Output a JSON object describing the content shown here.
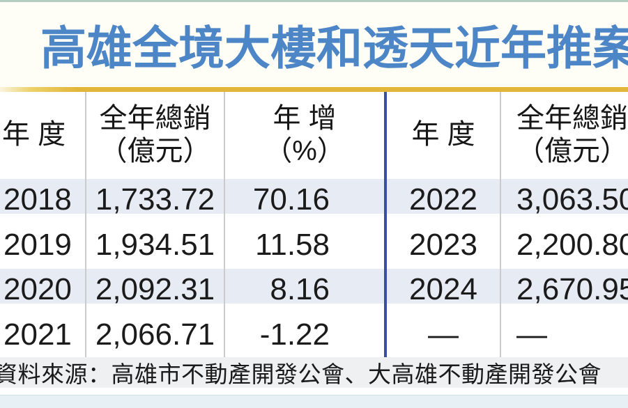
{
  "title": "高雄全境大樓和透天近年推案",
  "source": "資料來源：高雄市不動產開發公會、大高雄不動產開發公會",
  "colors": {
    "title_blue": "#4d86c6",
    "title_bg": "#fefdf6",
    "gold_rule": "#e2b63a",
    "row_tint": "#e7ebf3",
    "divider_gray": "#cbcbcb",
    "divider_blue": "#3b509b",
    "source_bar_bg": "#eff0f2",
    "bottom_stripe": "#e7f1f5",
    "top_edge": "#b3cdc2"
  },
  "table": {
    "left": {
      "year_header": "年 度",
      "total_header": [
        "全年總銷",
        "（億元）"
      ],
      "yoy_header": [
        "年 增",
        "（%）"
      ],
      "rows": [
        {
          "year": "2018",
          "total": "1,733.72",
          "yoy": "70.16"
        },
        {
          "year": "2019",
          "total": "1,934.51",
          "yoy": "11.58"
        },
        {
          "year": "2020",
          "total": "2,092.31",
          "yoy": "8.16"
        },
        {
          "year": "2021",
          "total": "2,066.71",
          "yoy": "-1.22"
        }
      ]
    },
    "right": {
      "year_header": "年 度",
      "total_header": [
        "全年總銷",
        "（億元）"
      ],
      "rows": [
        {
          "year": "2022",
          "total": "3,063.50"
        },
        {
          "year": "2023",
          "total": "2,200.80"
        },
        {
          "year": "2024",
          "total": "2,670.95"
        },
        {
          "year": "—",
          "total": "—"
        }
      ]
    }
  },
  "chart_data": {
    "type": "table",
    "title": "高雄全境大樓和透天近年推案",
    "columns": [
      "年度",
      "全年總銷（億元）",
      "年增（%）"
    ],
    "rows": [
      [
        2018,
        1733.72,
        70.16
      ],
      [
        2019,
        1934.51,
        11.58
      ],
      [
        2020,
        2092.31,
        8.16
      ],
      [
        2021,
        2066.71,
        -1.22
      ],
      [
        2022,
        3063.5,
        null
      ],
      [
        2023,
        2200.8,
        null
      ],
      [
        2024,
        2670.95,
        null
      ]
    ],
    "notes": "年增(%) column for 2022-2024 is cut off at the right edge of the image; final row shows em-dash placeholders.",
    "source": "資料來源：高雄市不動產開發公會、大高雄不動產開發公會"
  }
}
